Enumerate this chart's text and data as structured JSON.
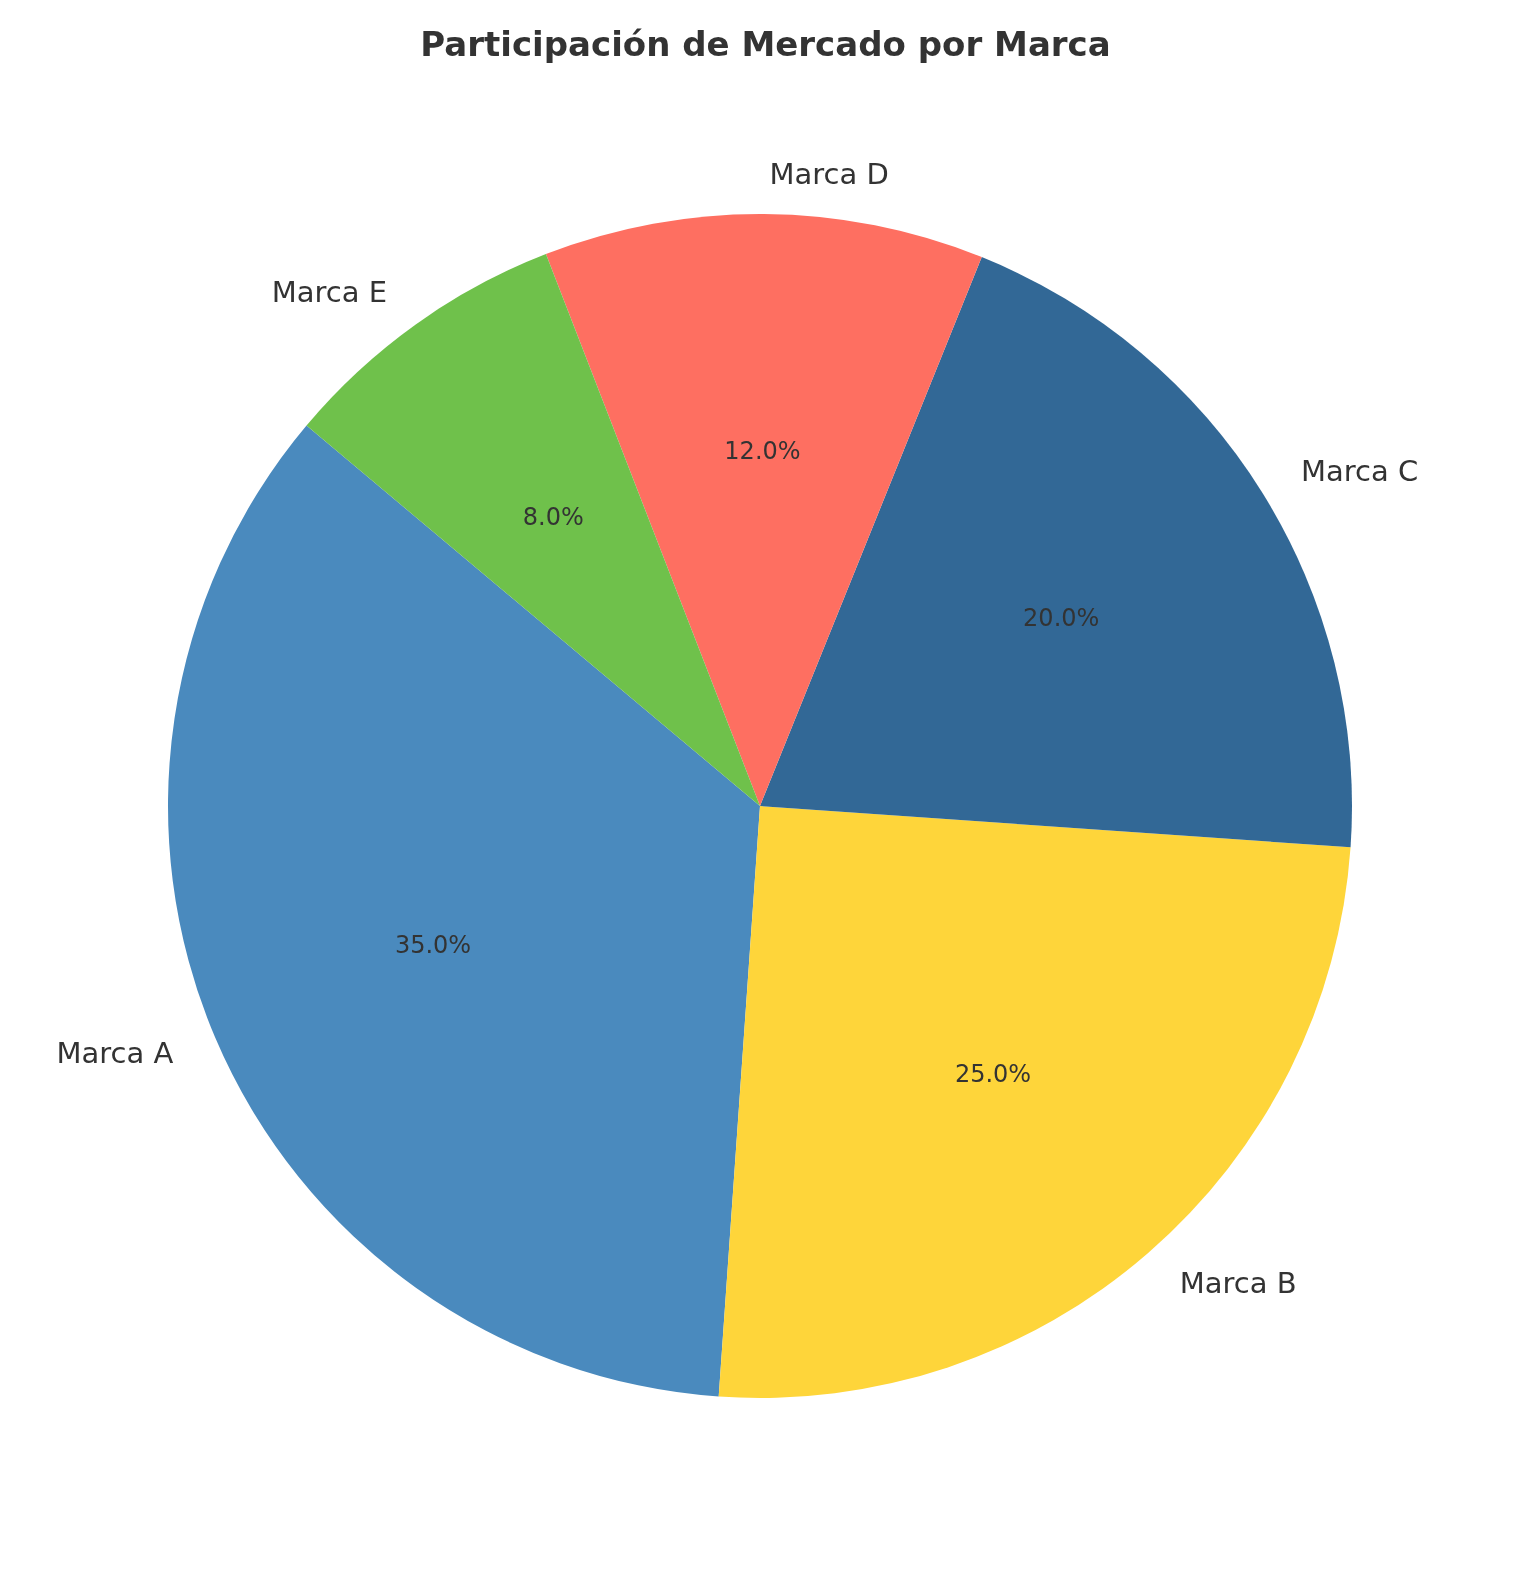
{
  "chart_data": {
    "type": "pie",
    "title": "Participación de Mercado por Marca",
    "categories": [
      "Marca A",
      "Marca B",
      "Marca C",
      "Marca D",
      "Marca E"
    ],
    "values": [
      35,
      25,
      20,
      12,
      8
    ],
    "colors": [
      "#4a8abe",
      "#fed53a",
      "#326896",
      "#fe6f61",
      "#6fc14b"
    ],
    "value_labels": [
      "35.0%",
      "25.0%",
      "20.0%",
      "12.0%",
      "8.0%"
    ]
  }
}
